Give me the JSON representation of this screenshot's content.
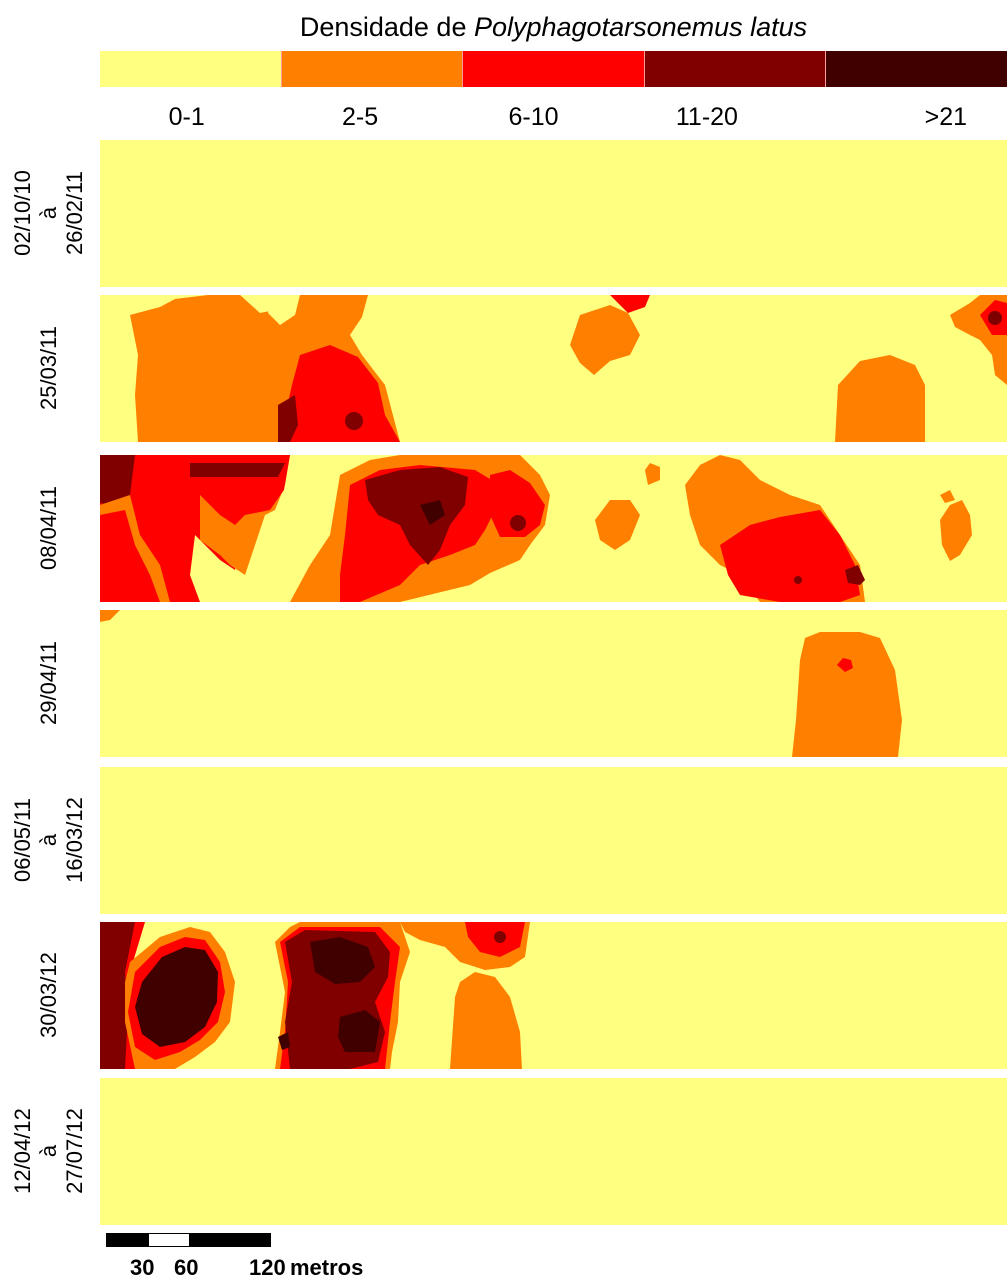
{
  "title": {
    "prefix": "Densidade de ",
    "species": "Polyphagotarsonemus latus"
  },
  "legend": {
    "classes": [
      {
        "label": "0-1",
        "color": "#ffff80"
      },
      {
        "label": "2-5",
        "color": "#ff8000"
      },
      {
        "label": "6-10",
        "color": "#ff0000"
      },
      {
        "label": "11-20",
        "color": "#800000"
      },
      {
        "label": ">21",
        "color": "#400000"
      }
    ]
  },
  "panels": [
    {
      "lines": [
        "02/10/10",
        "à",
        "26/02/11"
      ]
    },
    {
      "lines": [
        "25/03/11"
      ]
    },
    {
      "lines": [
        "08/04/11"
      ]
    },
    {
      "lines": [
        "29/04/11"
      ]
    },
    {
      "lines": [
        "06/05/11",
        "à",
        "16/03/12"
      ]
    },
    {
      "lines": [
        "30/03/12"
      ]
    },
    {
      "lines": [
        "12/04/12",
        "à",
        "27/07/12"
      ]
    }
  ],
  "scale": {
    "ticks": [
      "30",
      "60",
      "120"
    ],
    "unit": "metros"
  }
}
